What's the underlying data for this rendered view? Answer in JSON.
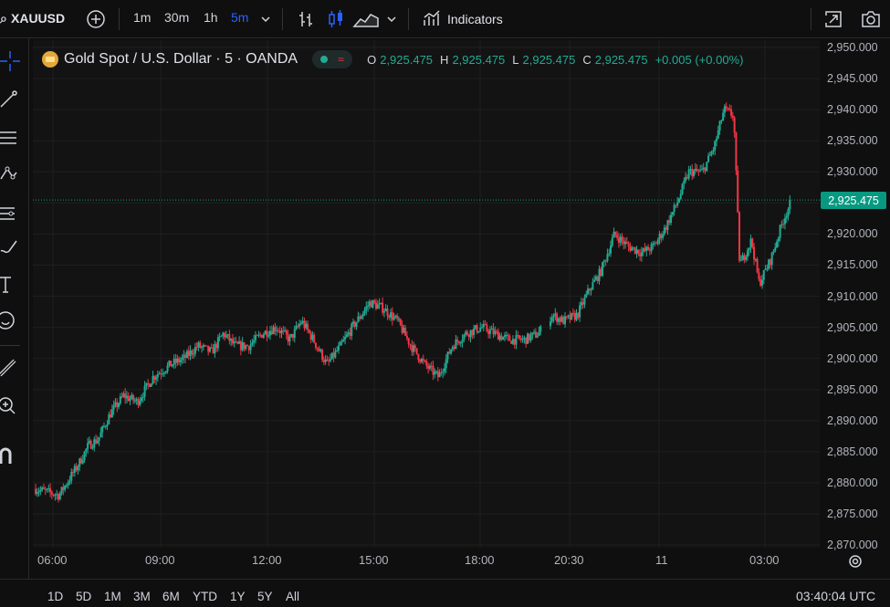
{
  "topbar": {
    "symbol": "XAUUSD",
    "intervals": [
      "1m",
      "30m",
      "1h",
      "5m"
    ],
    "active_interval": "5m",
    "indicators_label": "Indicators"
  },
  "legend": {
    "title": "Gold Spot / U.S. Dollar · 5 · OANDA",
    "o_label": "O",
    "o_value": "2,925.475",
    "h_label": "H",
    "h_value": "2,925.475",
    "l_label": "L",
    "l_value": "2,925.475",
    "c_label": "C",
    "c_value": "2,925.475",
    "change": "+0.005 (+0.00%)"
  },
  "colors": {
    "up": "#22ab94",
    "down": "#f23645",
    "accent": "#2962ff",
    "price_tag": "#089981"
  },
  "price_tag": "2,925.475",
  "clock": "03:40:04 UTC",
  "ranges": [
    "1D",
    "5D",
    "1M",
    "3M",
    "6M",
    "YTD",
    "1Y",
    "5Y",
    "All"
  ],
  "left_tools": [
    "crosshair-icon",
    "trend-line-icon",
    "fib-icon",
    "pattern-icon",
    "forecast-icon",
    "brush-icon",
    "text-icon",
    "emoji-icon",
    "ruler-icon",
    "zoom-icon",
    "magnet-icon"
  ],
  "chart_data": {
    "type": "candlestick",
    "y_tick_labels": [
      "2,950.000",
      "2,945.000",
      "2,940.000",
      "2,935.000",
      "2,930.000",
      "2,925.000",
      "2,920.000",
      "2,915.000",
      "2,910.000",
      "2,905.000",
      "2,900.000",
      "2,895.000",
      "2,890.000",
      "2,885.000",
      "2,880.000",
      "2,875.000",
      "2,870.000"
    ],
    "x_tick_labels": [
      "06:00",
      "09:00",
      "12:00",
      "15:00",
      "18:00",
      "20:30",
      "11",
      "03:00"
    ],
    "ylim": [
      2870,
      2950
    ],
    "last_price": 2925.475,
    "grid": true,
    "path": [
      [
        0,
        2879
      ],
      [
        1.2,
        2878
      ],
      [
        2.2,
        2883
      ],
      [
        2.7,
        2886
      ],
      [
        3.2,
        2887
      ],
      [
        3.8,
        2891
      ],
      [
        4.5,
        2894
      ],
      [
        5.2,
        2893
      ],
      [
        6.0,
        2897
      ],
      [
        6.9,
        2899
      ],
      [
        7.6,
        2900
      ],
      [
        8.3,
        2902
      ],
      [
        9.0,
        2901
      ],
      [
        9.6,
        2904
      ],
      [
        10.2,
        2902
      ],
      [
        10.9,
        2902
      ],
      [
        11.6,
        2904
      ],
      [
        12.3,
        2905
      ],
      [
        13.0,
        2903
      ],
      [
        13.6,
        2906
      ],
      [
        14.2,
        2903
      ],
      [
        14.9,
        2899
      ],
      [
        15.6,
        2902
      ],
      [
        16.2,
        2905
      ],
      [
        17.1,
        2909
      ],
      [
        17.8,
        2908
      ],
      [
        18.5,
        2906
      ],
      [
        19.2,
        2902
      ],
      [
        19.9,
        2899
      ],
      [
        20.6,
        2897
      ],
      [
        21.3,
        2902
      ],
      [
        22.0,
        2904
      ],
      [
        22.8,
        2905
      ],
      [
        23.5,
        2904
      ],
      [
        24.2,
        2903
      ],
      [
        25.0,
        2903
      ],
      [
        25.7,
        2904
      ],
      [
        26.4,
        2907
      ],
      [
        27.0,
        2906
      ],
      [
        27.7,
        2907
      ],
      [
        28.3,
        2911
      ],
      [
        28.9,
        2914
      ],
      [
        29.6,
        2920
      ],
      [
        30.3,
        2918
      ],
      [
        31.0,
        2917
      ],
      [
        31.6,
        2918
      ],
      [
        32.2,
        2921
      ],
      [
        32.8,
        2925
      ],
      [
        33.4,
        2930
      ],
      [
        34.1,
        2930
      ],
      [
        34.7,
        2934
      ],
      [
        35.2,
        2940
      ],
      [
        35.7,
        2939
      ],
      [
        36.0,
        2915
      ],
      [
        36.6,
        2919
      ],
      [
        37.0,
        2912
      ],
      [
        37.6,
        2916
      ],
      [
        38.2,
        2922
      ],
      [
        38.6,
        2925
      ]
    ]
  }
}
